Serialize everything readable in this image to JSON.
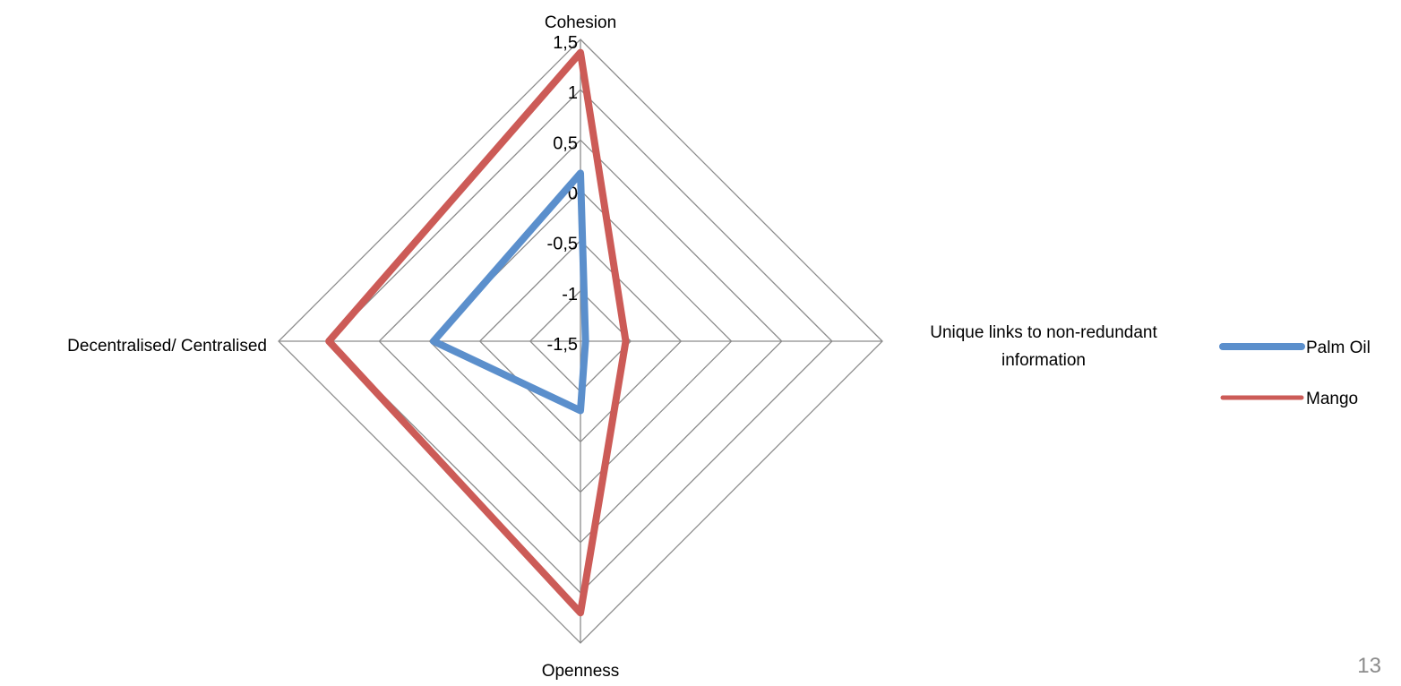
{
  "chart_data": {
    "type": "radar",
    "title": "",
    "axes": [
      "Cohesion",
      "Unique links to non-redundant information",
      "Openness",
      "Decentralised/ Centralised"
    ],
    "axis_label_lines": [
      [
        "Cohesion"
      ],
      [
        "Unique links to non-redundant",
        "information"
      ],
      [
        "Openness"
      ],
      [
        "Decentralised/ Centralised"
      ]
    ],
    "range": [
      -1.5,
      1.5
    ],
    "ticks": [
      -1.5,
      -1,
      -0.5,
      0,
      0.5,
      1,
      1.5
    ],
    "tick_labels": [
      "-1,5",
      "-1",
      "-0,5",
      "0",
      "0,5",
      "1",
      "1,5"
    ],
    "grid": true,
    "legend_position": "right",
    "series": [
      {
        "name": "Palm Oil",
        "color": "#5B8FCC",
        "values": [
          0.17,
          -1.45,
          -0.81,
          -0.04
        ]
      },
      {
        "name": "Mango",
        "color": "#CC5B57",
        "values": [
          1.37,
          -1.05,
          1.2,
          1.0
        ]
      }
    ]
  },
  "slide": {
    "page_number": "13"
  }
}
